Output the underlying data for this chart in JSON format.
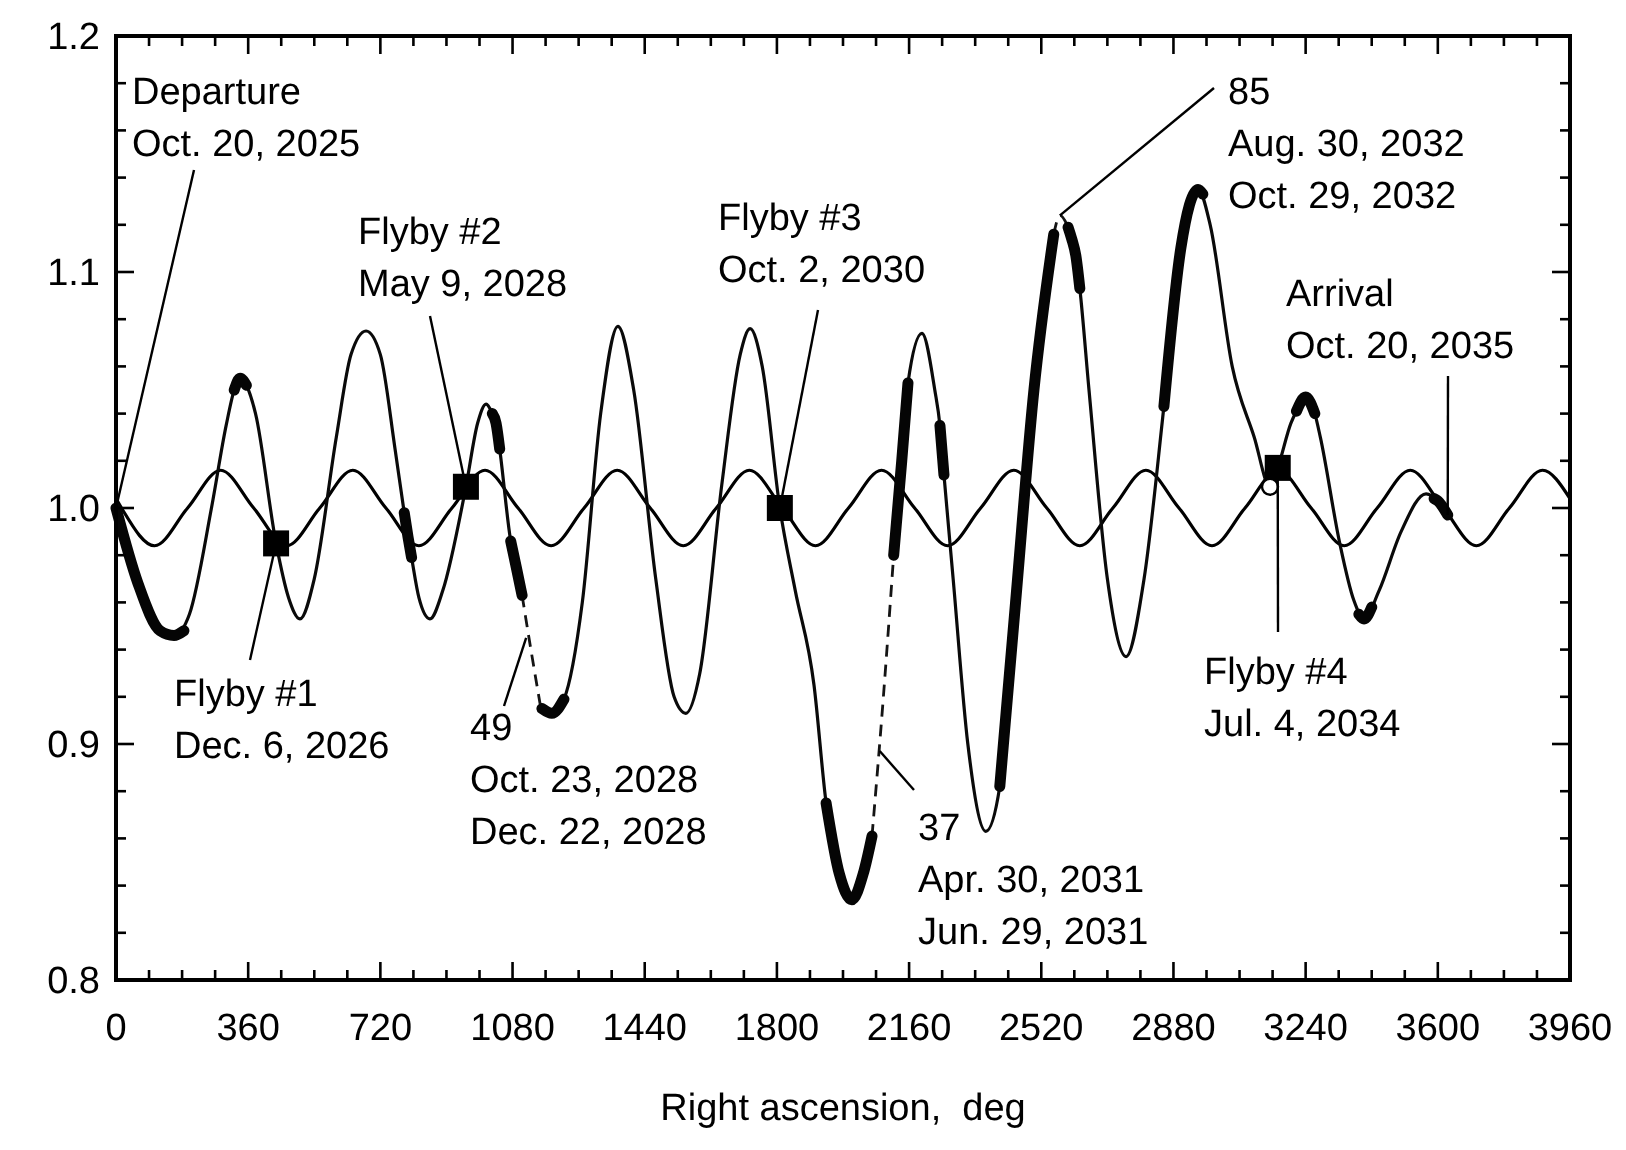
{
  "chart_data": {
    "type": "line",
    "xlabel": "Right ascension,  deg",
    "xlim": [
      0,
      3960
    ],
    "xticks": [
      0,
      {
        "value": 90,
        "label": null
      },
      {
        "value": 180,
        "label": null
      },
      {
        "value": 270,
        "label": null
      },
      360,
      {
        "value": 450,
        "label": null
      },
      {
        "value": 540,
        "label": null
      },
      {
        "value": 630,
        "label": null
      },
      720,
      {
        "value": 810,
        "label": null
      },
      {
        "value": 900,
        "label": null
      },
      {
        "value": 990,
        "label": null
      },
      1080,
      {
        "value": 1170,
        "label": null
      },
      {
        "value": 1260,
        "label": null
      },
      {
        "value": 1350,
        "label": null
      },
      1440,
      {
        "value": 1530,
        "label": null
      },
      {
        "value": 1620,
        "label": null
      },
      {
        "value": 1710,
        "label": null
      },
      1800,
      {
        "value": 1890,
        "label": null
      },
      {
        "value": 1980,
        "label": null
      },
      {
        "value": 2070,
        "label": null
      },
      2160,
      {
        "value": 2250,
        "label": null
      },
      {
        "value": 2340,
        "label": null
      },
      {
        "value": 2430,
        "label": null
      },
      2520,
      {
        "value": 2610,
        "label": null
      },
      {
        "value": 2700,
        "label": null
      },
      {
        "value": 2790,
        "label": null
      },
      2880,
      {
        "value": 2970,
        "label": null
      },
      {
        "value": 3060,
        "label": null
      },
      {
        "value": 3150,
        "label": null
      },
      3240,
      {
        "value": 3330,
        "label": null
      },
      {
        "value": 3420,
        "label": null
      },
      {
        "value": 3510,
        "label": null
      },
      3600,
      {
        "value": 3690,
        "label": null
      },
      {
        "value": 3780,
        "label": null
      },
      {
        "value": 3870,
        "label": null
      },
      3960
    ],
    "ylim": [
      0.8,
      1.2
    ],
    "yticks": [
      0.8,
      {
        "value": 0.82,
        "label": null
      },
      {
        "value": 0.84,
        "label": null
      },
      {
        "value": 0.86,
        "label": null
      },
      {
        "value": 0.88,
        "label": null
      },
      0.9,
      {
        "value": 0.92,
        "label": null
      },
      {
        "value": 0.94,
        "label": null
      },
      {
        "value": 0.96,
        "label": null
      },
      {
        "value": 0.98,
        "label": null
      },
      {
        "value": 1,
        "label": "1.0"
      },
      {
        "value": 1.02,
        "label": null
      },
      {
        "value": 1.04,
        "label": null
      },
      {
        "value": 1.06,
        "label": null
      },
      {
        "value": 1.08,
        "label": null
      },
      1.1,
      {
        "value": 1.12,
        "label": null
      },
      {
        "value": 1.14,
        "label": null
      },
      {
        "value": 1.16,
        "label": null
      },
      {
        "value": 1.18,
        "label": null
      },
      1.2
    ],
    "grid": false,
    "series": [
      {
        "color": "#000000",
        "x": [
          0,
          15,
          105,
          195,
          285,
          375,
          465,
          555,
          645,
          735,
          825,
          915,
          1005,
          1095,
          1185,
          1275,
          1365,
          1455,
          1545,
          1635,
          1725,
          1815,
          1905,
          1995,
          2085,
          2175,
          2265,
          2355,
          2445,
          2535,
          2625,
          2715,
          2805,
          2895,
          2985,
          3075,
          3165,
          3255,
          3345,
          3435,
          3525,
          3615,
          3705,
          3795,
          3885,
          3960
        ],
        "values": [
          1.004,
          1.0,
          0.984,
          1.0,
          1.016,
          1.0,
          0.984,
          1.0,
          1.016,
          1.0,
          0.984,
          1.0,
          1.016,
          1.0,
          0.984,
          1.0,
          1.016,
          1.0,
          0.984,
          1.0,
          1.016,
          1.0,
          0.984,
          1.0,
          1.016,
          1.0,
          0.984,
          1.0,
          1.016,
          1.0,
          0.984,
          1.0,
          1.016,
          1.0,
          0.984,
          1.0,
          1.016,
          1.0,
          0.984,
          1.0,
          1.016,
          1.0,
          0.984,
          1.0,
          1.016,
          1.004
        ]
      },
      {
        "color": "#0a0a0a",
        "x": [
          0,
          60,
          120,
          158,
          200,
          260,
          300,
          322,
          338,
          355,
          380,
          436,
          470,
          501,
          540,
          600,
          640,
          681,
          720,
          760,
          785,
          795,
          805,
          825,
          855,
          890,
          953,
          985,
          1008,
          1025,
          1035,
          1045,
          1075,
          1090,
          1106,
          1130,
          1155,
          1187,
          1220,
          1270,
          1320,
          1367,
          1410,
          1470,
          1520,
          1552,
          1590,
          1650,
          1700,
          1727,
          1760,
          1808,
          1850,
          1901,
          1934,
          1970,
          2004,
          2035,
          2059,
          2090,
          2118,
          2140,
          2157,
          2195,
          2230,
          2244,
          2255,
          2280,
          2320,
          2369,
          2407,
          2450,
          2500,
          2554,
          2571,
          2593,
          2603,
          2614,
          2625,
          2650,
          2700,
          2751,
          2800,
          2854,
          2900,
          2947,
          2980,
          3040,
          3100,
          3143,
          3164,
          3200,
          3215,
          3240,
          3265,
          3280,
          3333,
          3371,
          3399,
          3440,
          3500,
          3568,
          3600,
          3627
        ],
        "values": [
          1.0,
          0.968,
          0.948,
          0.946,
          0.955,
          1.0,
          1.035,
          1.05,
          1.055,
          1.052,
          1.04,
          0.985,
          0.962,
          0.953,
          0.97,
          1.03,
          1.065,
          1.075,
          1.065,
          1.025,
          0.998,
          0.988,
          0.979,
          0.962,
          0.953,
          0.965,
          1.009,
          1.036,
          1.044,
          1.04,
          1.036,
          1.025,
          0.986,
          0.975,
          0.963,
          null,
          0.917,
          0.913,
          0.919,
          0.96,
          1.04,
          1.077,
          1.05,
          0.97,
          0.92,
          0.913,
          0.93,
          1.01,
          1.065,
          1.076,
          1.06,
          1.0,
          0.965,
          0.925,
          0.875,
          0.845,
          0.834,
          0.845,
          0.861,
          null,
          0.98,
          1.02,
          1.053,
          1.074,
          1.05,
          1.035,
          1.014,
          0.97,
          0.9,
          0.863,
          0.882,
          0.96,
          1.05,
          1.116,
          null,
          1.119,
          1.114,
          1.107,
          1.093,
          1.05,
          0.97,
          0.937,
          0.97,
          1.043,
          1.11,
          1.135,
          1.12,
          1.06,
          1.03,
          1.009,
          1.017,
          1.036,
          1.041,
          1.047,
          1.04,
          1.03,
          0.985,
          0.961,
          0.953,
          0.965,
          0.99,
          1.006,
          1.003,
          0.997
        ]
      },
      {
        "line_style": "dashed",
        "color": "#141414",
        "x": [
          1106,
          1130,
          1155,
          1157,
          2059,
          2090,
          2118,
          2120,
          2554,
          2571,
          2593
        ],
        "values": [
          0.963,
          0.94,
          0.917,
          null,
          0.861,
          0.92,
          0.98,
          null,
          1.116,
          1.124,
          1.119
        ]
      },
      {
        "color": "#050505",
        "x": [
          0,
          60,
          120,
          158,
          185,
          186,
          322,
          338,
          355,
          356,
          785,
          795,
          805,
          806,
          1025,
          1035,
          1045,
          1046,
          1075,
          1090,
          1106,
          1107,
          1160,
          1187,
          1220,
          1221,
          1934,
          1970,
          2004,
          2035,
          2059,
          2060,
          2118,
          2140,
          2157,
          2158,
          2244,
          2255,
          2256,
          2407,
          2450,
          2500,
          2554,
          2555,
          2593,
          2603,
          2614,
          2625,
          2626,
          2854,
          2900,
          2947,
          2960,
          2961,
          3215,
          3240,
          3265,
          3266,
          3385,
          3399,
          3420,
          3421,
          3590,
          3600,
          3627
        ],
        "values": [
          1.0,
          0.968,
          0.948,
          0.946,
          0.948,
          null,
          1.05,
          1.055,
          1.052,
          null,
          0.998,
          0.988,
          0.979,
          null,
          1.04,
          1.036,
          1.025,
          null,
          0.986,
          0.975,
          0.963,
          null,
          0.915,
          0.913,
          0.919,
          null,
          0.875,
          0.845,
          0.834,
          0.845,
          0.861,
          null,
          0.98,
          1.02,
          1.053,
          null,
          1.035,
          1.014,
          null,
          0.882,
          0.96,
          1.05,
          1.116,
          null,
          1.119,
          1.114,
          1.107,
          1.093,
          null,
          1.043,
          1.11,
          1.135,
          1.133,
          null,
          1.041,
          1.047,
          1.04,
          null,
          0.955,
          0.953,
          0.958,
          null,
          1.004,
          1.003,
          0.997
        ]
      },
      {
        "type": "scatter",
        "marker": "square",
        "color": "#000000",
        "x": [
          436,
          953,
          1808,
          3164
        ],
        "values": [
          0.985,
          1.009,
          1.0,
          1.017
        ]
      },
      {
        "type": "scatter",
        "marker": "circle",
        "color": "#ffffff",
        "x": [
          3143
        ],
        "values": [
          1.009
        ]
      }
    ],
    "annotations": [
      {
        "text": "Departure\nOct. 20, 2025",
        "x": 0,
        "y": 1.0
      },
      {
        "text": "Flyby #1\nDec. 6, 2026",
        "x": 436,
        "y": 0.985
      },
      {
        "text": "Flyby #2\nMay 9, 2028",
        "x": 953,
        "y": 1.009
      },
      {
        "text": "49\nOct. 23, 2028\nDec. 22, 2028",
        "x": 1117,
        "y": 0.945
      },
      {
        "text": "Flyby #3\nOct. 2, 2030",
        "x": 1808,
        "y": 1.0
      },
      {
        "text": "37\nApr. 30, 2031\nJun. 29, 2031",
        "x": 2080,
        "y": 0.897
      },
      {
        "text": "85\nAug. 30, 2032\nOct. 29, 2032",
        "x": 2571,
        "y": 1.124
      },
      {
        "text": "Flyby #4\nJul. 4, 2034",
        "x": 3164,
        "y": 1.017
      },
      {
        "text": "Arrival\nOct. 20, 2035",
        "x": 3627,
        "y": 0.997
      }
    ]
  }
}
